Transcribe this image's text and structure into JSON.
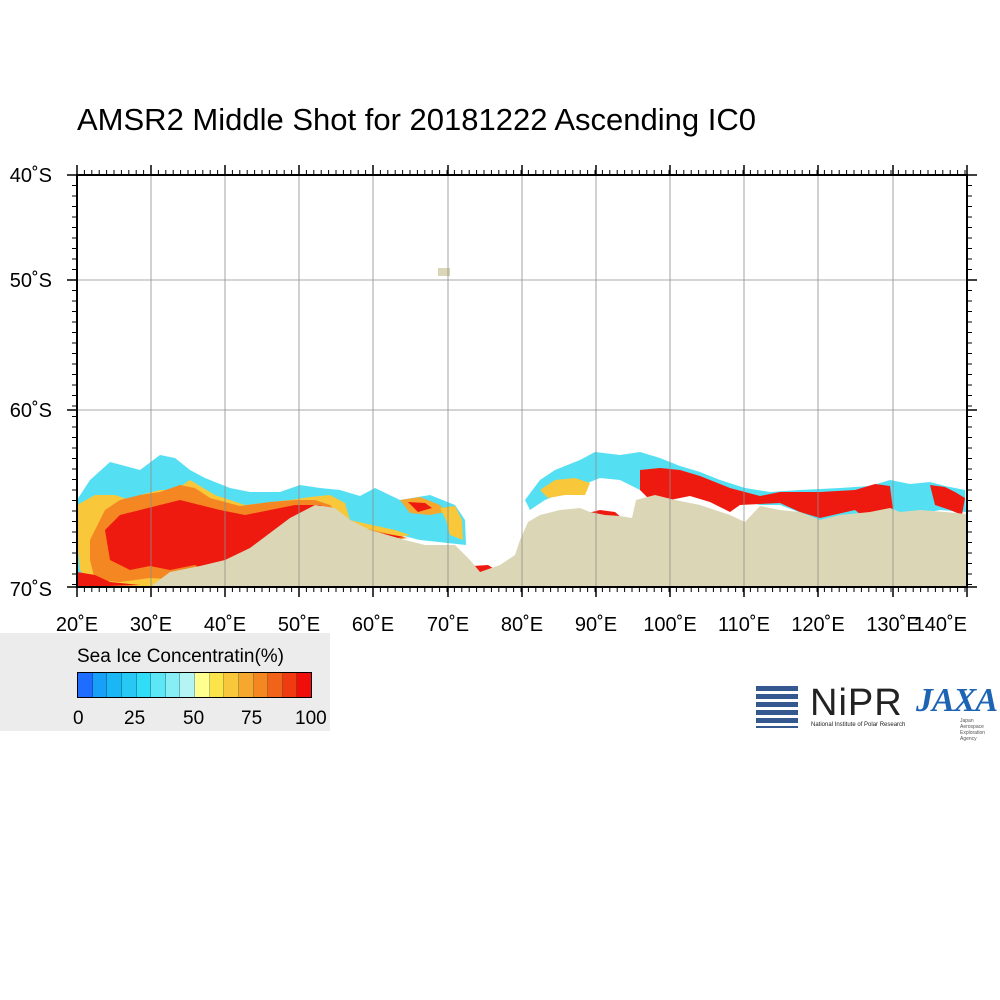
{
  "title": "AMSR2 Middle Shot for 20181222 Ascending IC0",
  "map": {
    "lon_ticks": [
      "20˚E",
      "30˚E",
      "40˚E",
      "50˚E",
      "60˚E",
      "70˚E",
      "80˚E",
      "90˚E",
      "100˚E",
      "110˚E",
      "120˚E",
      "130˚E",
      "140˚E"
    ],
    "lat_ticks": [
      "40˚S",
      "50˚S",
      "60˚S",
      "70˚S"
    ],
    "land_color": "#dbd7b6",
    "grid_color": "#8c8c8c"
  },
  "legend": {
    "title": "Sea Ice Concentratin(%)",
    "labels": [
      "0",
      "25",
      "50",
      "75",
      "100"
    ],
    "colors": [
      "#1f6dfe",
      "#16a0f7",
      "#19b8f5",
      "#27c8f4",
      "#30dcf6",
      "#5de6f5",
      "#88eef5",
      "#b4f4f3",
      "#ffff90",
      "#fbe34a",
      "#f8c73a",
      "#f6a72e",
      "#f58723",
      "#f2631a",
      "#f03a12",
      "#ef0e0a"
    ]
  },
  "logos": {
    "nipr": "NiPR",
    "nipr_sub": "National Institute of Polar Research",
    "jaxa": "JAXA",
    "jaxa_sub": "Japan Aerospace Exploration Agency"
  }
}
